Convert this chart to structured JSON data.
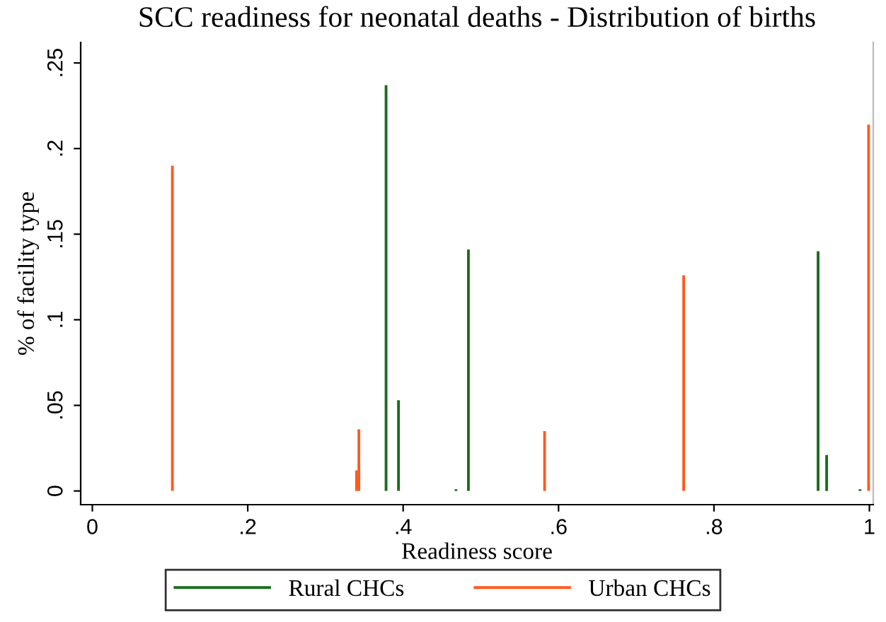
{
  "chart_data": {
    "type": "bar",
    "title": "SCC readiness for neonatal deaths - Distribution of births",
    "xlabel": "Readiness score",
    "ylabel": "% of facility type",
    "series": [
      {
        "name": "Rural CHCs",
        "color": "#1b6b1b",
        "x": [
          0.378,
          0.394,
          0.468,
          0.484,
          0.934,
          0.945,
          0.988
        ],
        "values": [
          0.237,
          0.053,
          0.001,
          0.141,
          0.14,
          0.021,
          0.001
        ]
      },
      {
        "name": "Urban CHCs",
        "color": "#ff5a1f",
        "x": [
          0.103,
          0.34,
          0.343,
          0.582,
          0.761,
          0.999
        ],
        "values": [
          0.19,
          0.012,
          0.036,
          0.035,
          0.126,
          0.214
        ]
      }
    ],
    "xlim": [
      -0.015,
      1.005
    ],
    "ylim": [
      -0.008,
      0.262
    ],
    "xticks": [
      0,
      {
        "value": 0.2,
        "label": ".2"
      },
      {
        "value": 0.4,
        "label": ".4"
      },
      {
        "value": 0.6,
        "label": ".6"
      },
      {
        "value": 0.8,
        "label": ".8"
      },
      1
    ],
    "yticks": [
      0,
      {
        "value": 0.05,
        "label": ".05"
      },
      {
        "value": 0.1,
        "label": ".1"
      },
      {
        "value": 0.15,
        "label": ".15"
      },
      {
        "value": 0.2,
        "label": ".2"
      },
      {
        "value": 0.25,
        "label": ".25"
      }
    ],
    "grid": false,
    "legend": "bottom"
  }
}
